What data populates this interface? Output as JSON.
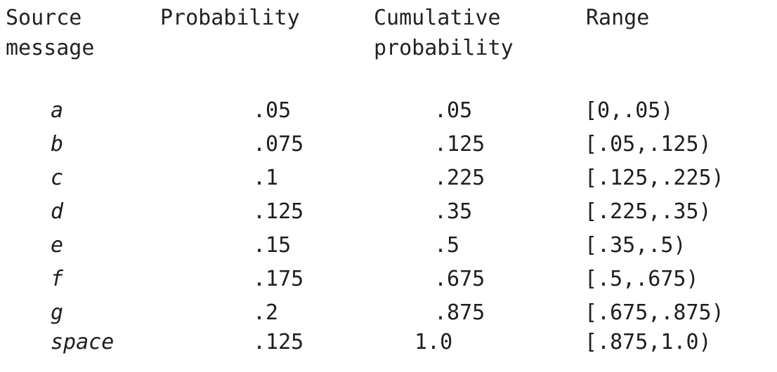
{
  "header": {
    "source_message": "Source\nmessage",
    "probability": "Probability",
    "cumulative_probability": "Cumulative\nprobability",
    "range": "Range"
  },
  "rows": [
    {
      "message": "a",
      "probability": ".05",
      "cumulative": ".05",
      "range": "[0,.05)"
    },
    {
      "message": "b",
      "probability": ".075",
      "cumulative": ".125",
      "range": "[.05,.125)"
    },
    {
      "message": "c",
      "probability": ".1",
      "cumulative": ".225",
      "range": "[.125,.225)"
    },
    {
      "message": "d",
      "probability": ".125",
      "cumulative": ".35",
      "range": "[.225,.35)"
    },
    {
      "message": "e",
      "probability": ".15",
      "cumulative": ".5",
      "range": "[.35,.5)"
    },
    {
      "message": "f",
      "probability": ".175",
      "cumulative": ".675",
      "range": "[.5,.675)"
    },
    {
      "message": "g",
      "probability": ".2",
      "cumulative": ".875",
      "range": "[.675,.875)"
    },
    {
      "message": "space",
      "probability": ".125",
      "cumulative": "1.0",
      "range": "[.875,1.0)"
    }
  ]
}
